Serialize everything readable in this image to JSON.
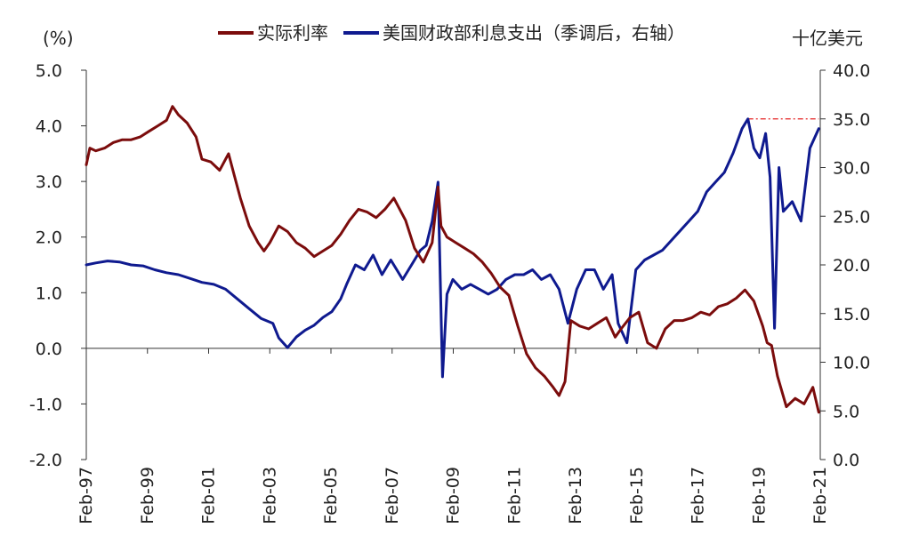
{
  "chart_data": {
    "type": "line",
    "left_unit": "(%)",
    "right_unit": "十亿美元",
    "colors": {
      "real_rate": "#7b0c0c",
      "interest": "#0f1a8f",
      "ref_line": "#e52222",
      "negative_tick": "#e52222"
    },
    "legend": [
      {
        "key": "real_rate",
        "label": "实际利率"
      },
      {
        "key": "interest",
        "label": "美国财政部利息支出（季调后，右轴）"
      }
    ],
    "x_ticks": [
      "Feb-97",
      "Feb-99",
      "Feb-01",
      "Feb-03",
      "Feb-05",
      "Feb-07",
      "Feb-09",
      "Feb-11",
      "Feb-13",
      "Feb-15",
      "Feb-17",
      "Feb-19",
      "Feb-21"
    ],
    "x_range": [
      1997.08,
      2021.95
    ],
    "y_left": {
      "min": -2.0,
      "max": 5.0,
      "ticks": [
        "-2.0",
        "-1.0",
        "0.0",
        "1.0",
        "2.0",
        "3.0",
        "4.0",
        "5.0"
      ]
    },
    "y_right": {
      "min": 0.0,
      "max": 40.0,
      "ticks": [
        "0.0",
        "5.0",
        "10.0",
        "15.0",
        "20.0",
        "25.0",
        "30.0",
        "35.0",
        "40.0"
      ]
    },
    "reference_line": {
      "axis": "right",
      "value": 35.0,
      "x_start": 2019.5,
      "x_end": 2021.9
    },
    "series": [
      {
        "name": "实际利率",
        "axis": "left",
        "x": [
          1997.08,
          1997.2,
          1997.4,
          1997.7,
          1998.0,
          1998.3,
          1998.6,
          1998.9,
          1999.2,
          1999.5,
          1999.8,
          2000.0,
          2000.2,
          2000.5,
          2000.8,
          2001.0,
          2001.3,
          2001.6,
          2001.9,
          2002.1,
          2002.3,
          2002.6,
          2002.9,
          2003.1,
          2003.3,
          2003.6,
          2003.9,
          2004.2,
          2004.5,
          2004.8,
          2005.1,
          2005.4,
          2005.7,
          2006.0,
          2006.3,
          2006.6,
          2006.9,
          2007.2,
          2007.5,
          2007.9,
          2008.2,
          2008.5,
          2008.8,
          2009.0,
          2009.1,
          2009.3,
          2009.6,
          2009.9,
          2010.2,
          2010.5,
          2010.8,
          2011.1,
          2011.4,
          2011.7,
          2012.0,
          2012.3,
          2012.6,
          2012.9,
          2013.1,
          2013.3,
          2013.5,
          2013.8,
          2014.1,
          2014.4,
          2014.7,
          2015.0,
          2015.2,
          2015.5,
          2015.8,
          2016.1,
          2016.4,
          2016.7,
          2017.0,
          2017.3,
          2017.6,
          2017.9,
          2018.2,
          2018.5,
          2018.8,
          2019.1,
          2019.4,
          2019.7,
          2020.0,
          2020.15,
          2020.3,
          2020.5,
          2020.8,
          2021.1,
          2021.4,
          2021.7,
          2021.9
        ],
        "y": [
          3.3,
          3.6,
          3.55,
          3.6,
          3.7,
          3.75,
          3.75,
          3.8,
          3.9,
          4.0,
          4.1,
          4.35,
          4.2,
          4.05,
          3.8,
          3.4,
          3.35,
          3.2,
          3.5,
          3.1,
          2.7,
          2.2,
          1.9,
          1.75,
          1.9,
          2.2,
          2.1,
          1.9,
          1.8,
          1.65,
          1.75,
          1.85,
          2.05,
          2.3,
          2.5,
          2.45,
          2.35,
          2.5,
          2.7,
          2.3,
          1.8,
          1.55,
          1.9,
          2.9,
          2.2,
          2.0,
          1.9,
          1.8,
          1.7,
          1.55,
          1.35,
          1.1,
          0.95,
          0.4,
          -0.1,
          -0.35,
          -0.5,
          -0.7,
          -0.85,
          -0.6,
          0.5,
          0.4,
          0.35,
          0.45,
          0.55,
          0.2,
          0.35,
          0.55,
          0.65,
          0.1,
          0.0,
          0.35,
          0.5,
          0.5,
          0.55,
          0.65,
          0.6,
          0.75,
          0.8,
          0.9,
          1.05,
          0.85,
          0.4,
          0.1,
          0.05,
          -0.5,
          -1.05,
          -0.9,
          -1.0,
          -0.7,
          -1.15
        ]
      },
      {
        "name": "美国财政部利息支出（季调后，右轴）",
        "axis": "right",
        "x": [
          1997.08,
          1997.4,
          1997.8,
          1998.2,
          1998.6,
          1999.0,
          1999.4,
          1999.8,
          2000.2,
          2000.6,
          2001.0,
          2001.4,
          2001.8,
          2002.2,
          2002.6,
          2003.0,
          2003.4,
          2003.6,
          2003.9,
          2004.2,
          2004.5,
          2004.8,
          2005.1,
          2005.4,
          2005.7,
          2005.9,
          2006.2,
          2006.5,
          2006.8,
          2007.1,
          2007.4,
          2007.8,
          2008.1,
          2008.4,
          2008.6,
          2008.8,
          2009.0,
          2009.15,
          2009.3,
          2009.5,
          2009.8,
          2010.1,
          2010.4,
          2010.7,
          2011.0,
          2011.3,
          2011.6,
          2011.9,
          2012.2,
          2012.5,
          2012.8,
          2013.1,
          2013.4,
          2013.7,
          2014.0,
          2014.3,
          2014.6,
          2014.9,
          2015.1,
          2015.4,
          2015.7,
          2016.0,
          2016.3,
          2016.6,
          2016.9,
          2017.2,
          2017.5,
          2017.8,
          2018.1,
          2018.4,
          2018.7,
          2019.0,
          2019.3,
          2019.5,
          2019.7,
          2019.9,
          2020.1,
          2020.25,
          2020.4,
          2020.55,
          2020.7,
          2021.0,
          2021.3,
          2021.6,
          2021.9
        ],
        "y": [
          20.0,
          20.2,
          20.4,
          20.3,
          20.0,
          19.9,
          19.5,
          19.2,
          19.0,
          18.6,
          18.2,
          18.0,
          17.5,
          16.5,
          15.5,
          14.5,
          14.0,
          12.5,
          11.5,
          12.6,
          13.3,
          13.8,
          14.6,
          15.2,
          16.5,
          18.0,
          20.0,
          19.5,
          21.0,
          19.0,
          20.5,
          18.5,
          20.0,
          21.5,
          22.0,
          24.5,
          28.5,
          8.5,
          17.0,
          18.5,
          17.5,
          18.0,
          17.5,
          17.0,
          17.5,
          18.5,
          19.0,
          19.0,
          19.5,
          18.5,
          19.0,
          17.5,
          14.0,
          17.5,
          19.5,
          19.5,
          17.5,
          19.0,
          14.0,
          12.0,
          19.5,
          20.5,
          21.0,
          21.5,
          22.5,
          23.5,
          24.5,
          25.5,
          27.5,
          28.5,
          29.5,
          31.5,
          34.0,
          35.0,
          32.0,
          31.0,
          33.5,
          29.0,
          13.5,
          30.0,
          25.5,
          26.5,
          24.5,
          32.0,
          34.0
        ]
      }
    ]
  }
}
